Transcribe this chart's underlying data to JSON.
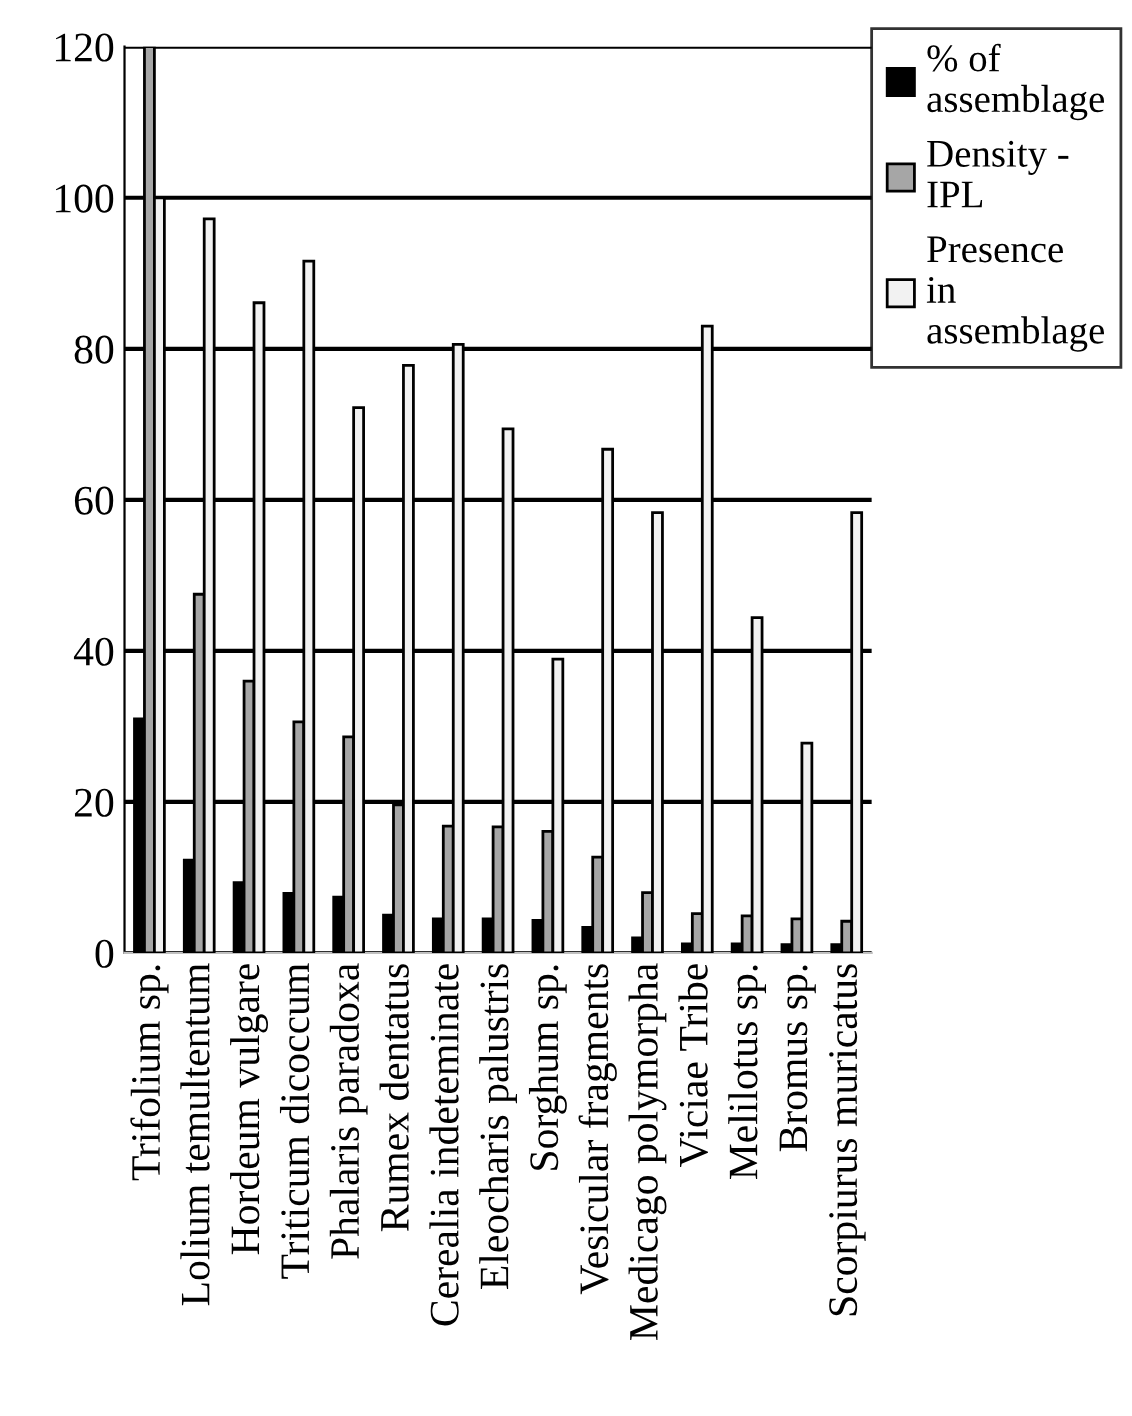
{
  "chart_data": {
    "type": "bar",
    "categories": [
      "Trifolium sp.",
      "Lolium temultentum",
      "Hordeum vulgare",
      "Triticum dicoccum",
      "Phalaris paradoxa",
      "Rumex dentatus",
      "Cerealia indeteminate",
      "Eleocharis palustris",
      "Sorghum sp.",
      "Vesicular fragments",
      "Medicago polymorpha",
      "Viciae Tribe",
      "Melilotus sp.",
      "Bromus sp.",
      "Scorpiurus muricatus"
    ],
    "series": [
      {
        "name": "% of assemblage",
        "color": "#000000",
        "values": [
          31,
          12.3,
          9.3,
          7.9,
          7.4,
          5,
          4.5,
          4.5,
          4.3,
          3.4,
          2,
          1.2,
          1.2,
          1.1,
          1.1
        ]
      },
      {
        "name": "Density - IPL",
        "color": "#a6a6a6",
        "values": [
          120,
          47.5,
          36,
          30.6,
          28.6,
          19.6,
          16.8,
          16.7,
          16.1,
          12.7,
          8,
          5.2,
          4.9,
          4.5,
          4.2
        ]
      },
      {
        "name": "Presence in assemblage",
        "color": "#f2f2f2",
        "values": [
          100,
          97.2,
          86.1,
          91.6,
          72.2,
          77.8,
          80.6,
          69.4,
          38.9,
          66.7,
          58.3,
          83,
          44.4,
          27.8,
          58.3
        ]
      }
    ],
    "ylim": [
      0,
      120
    ],
    "yticks": [
      0,
      20,
      40,
      60,
      80,
      100,
      120
    ],
    "grid": "y",
    "legend": "top right"
  }
}
